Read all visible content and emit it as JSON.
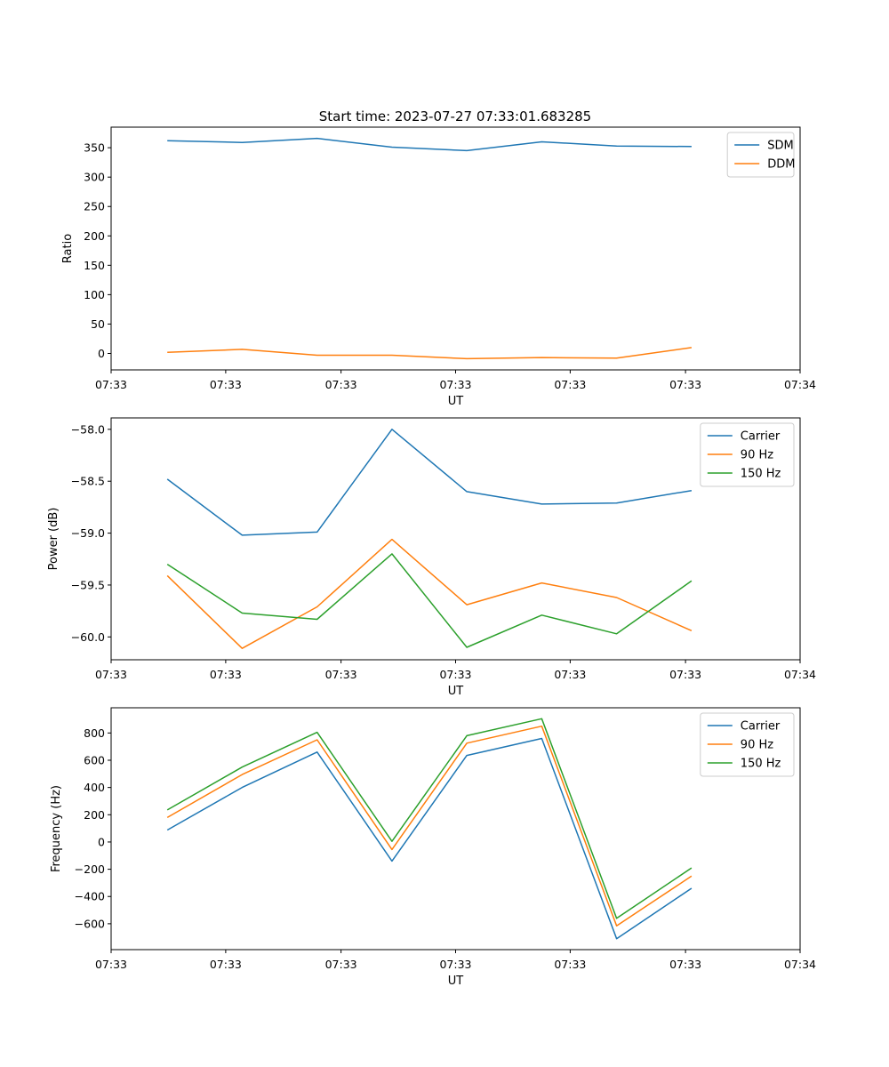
{
  "figure": {
    "title": "Start time: 2023-07-27 07:33:01.683285"
  },
  "chart_data": [
    {
      "type": "line",
      "id": "ratio",
      "xlabel": "UT",
      "ylabel": "Ratio",
      "xlim": [
        0,
        9.2
      ],
      "x_ticks": [
        0,
        1.53,
        3.07,
        4.6,
        6.13,
        7.67,
        9.2
      ],
      "x_tick_labels": [
        "07:33",
        "07:33",
        "07:33",
        "07:33",
        "07:33",
        "07:33",
        "07:34"
      ],
      "ylim": [
        -28,
        385
      ],
      "y_ticks": [
        0,
        50,
        100,
        150,
        200,
        250,
        300,
        350
      ],
      "y_tick_labels": [
        "0",
        "50",
        "100",
        "150",
        "200",
        "250",
        "300",
        "350"
      ],
      "legend_position": "top-right",
      "x": [
        0.75,
        1.75,
        2.75,
        3.75,
        4.75,
        5.75,
        6.75,
        7.75
      ],
      "series": [
        {
          "name": "SDM",
          "color": "#1f77b4",
          "values": [
            362,
            359,
            366,
            351,
            345,
            360,
            353,
            352
          ]
        },
        {
          "name": "DDM",
          "color": "#ff7f0e",
          "values": [
            2,
            7,
            -3,
            -3,
            -9,
            -7,
            -8,
            10
          ]
        }
      ]
    },
    {
      "type": "line",
      "id": "power",
      "xlabel": "UT",
      "ylabel": "Power (dB)",
      "xlim": [
        0,
        9.2
      ],
      "x_ticks": [
        0,
        1.53,
        3.07,
        4.6,
        6.13,
        7.67,
        9.2
      ],
      "x_tick_labels": [
        "07:33",
        "07:33",
        "07:33",
        "07:33",
        "07:33",
        "07:33",
        "07:34"
      ],
      "ylim": [
        -60.22,
        -57.89
      ],
      "y_ticks": [
        -60.0,
        -59.5,
        -59.0,
        -58.5,
        -58.0
      ],
      "y_tick_labels": [
        "−60.0",
        "−59.5",
        "−59.0",
        "−58.5",
        "−58.0"
      ],
      "legend_position": "top-right",
      "x": [
        0.75,
        1.75,
        2.75,
        3.75,
        4.75,
        5.75,
        6.75,
        7.75
      ],
      "series": [
        {
          "name": "Carrier",
          "color": "#1f77b4",
          "values": [
            -58.48,
            -59.02,
            -58.99,
            -58.0,
            -58.6,
            -58.72,
            -58.71,
            -58.59
          ]
        },
        {
          "name": "90 Hz",
          "color": "#ff7f0e",
          "values": [
            -59.41,
            -60.11,
            -59.71,
            -59.06,
            -59.69,
            -59.48,
            -59.62,
            -59.94
          ]
        },
        {
          "name": "150 Hz",
          "color": "#2ca02c",
          "values": [
            -59.3,
            -59.77,
            -59.83,
            -59.2,
            -60.1,
            -59.79,
            -59.97,
            -59.46
          ]
        }
      ]
    },
    {
      "type": "line",
      "id": "frequency",
      "xlabel": "UT",
      "ylabel": "Frequency (Hz)",
      "xlim": [
        0,
        9.2
      ],
      "x_ticks": [
        0,
        1.53,
        3.07,
        4.6,
        6.13,
        7.67,
        9.2
      ],
      "x_tick_labels": [
        "07:33",
        "07:33",
        "07:33",
        "07:33",
        "07:33",
        "07:33",
        "07:34"
      ],
      "ylim": [
        -790,
        985
      ],
      "y_ticks": [
        -600,
        -400,
        -200,
        0,
        200,
        400,
        600,
        800
      ],
      "y_tick_labels": [
        "−600",
        "−400",
        "−200",
        "0",
        "200",
        "400",
        "600",
        "800"
      ],
      "legend_position": "top-right",
      "x": [
        0.75,
        1.75,
        2.75,
        3.75,
        4.75,
        5.75,
        6.75,
        7.75
      ],
      "series": [
        {
          "name": "Carrier",
          "color": "#1f77b4",
          "values": [
            88,
            400,
            660,
            -140,
            635,
            760,
            -710,
            -340
          ]
        },
        {
          "name": "90 Hz",
          "color": "#ff7f0e",
          "values": [
            180,
            495,
            750,
            -55,
            725,
            850,
            -615,
            -250
          ]
        },
        {
          "name": "150 Hz",
          "color": "#2ca02c",
          "values": [
            235,
            550,
            805,
            5,
            780,
            905,
            -560,
            -190
          ]
        }
      ]
    }
  ]
}
